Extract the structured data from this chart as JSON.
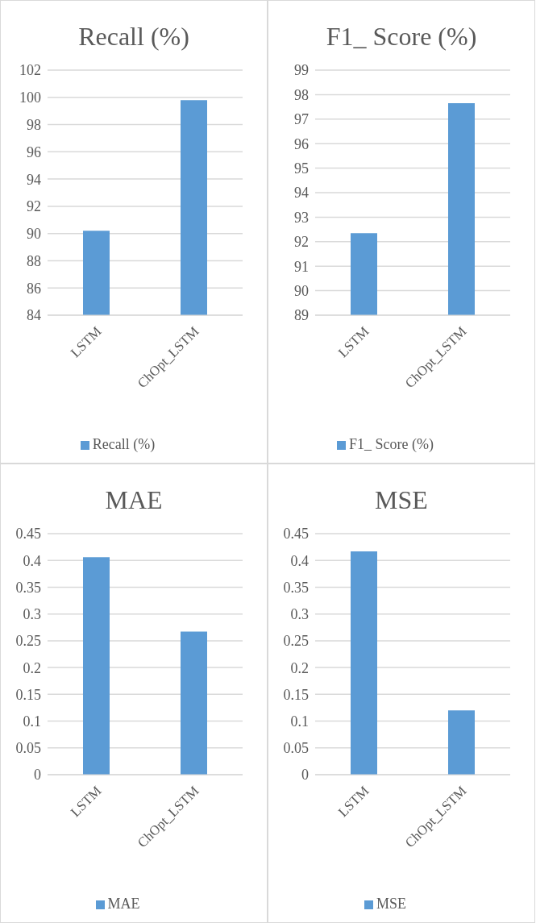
{
  "chart_data": [
    {
      "type": "bar",
      "title": "Recall (%)",
      "categories": [
        "LSTM",
        "ChOpt_LSTM"
      ],
      "series": [
        {
          "name": "Recall (%)",
          "color": "#5b9bd5",
          "values": [
            90.2,
            99.8
          ]
        }
      ],
      "ylim": [
        84,
        102
      ],
      "yticks": [
        84,
        86,
        88,
        90,
        92,
        94,
        96,
        98,
        100,
        102
      ],
      "grid": "y",
      "legend": "bottom"
    },
    {
      "type": "bar",
      "title": "F1_ Score (%)",
      "categories": [
        "LSTM",
        "ChOpt_LSTM"
      ],
      "series": [
        {
          "name": "F1_ Score (%)",
          "color": "#5b9bd5",
          "values": [
            92.35,
            97.65
          ]
        }
      ],
      "ylim": [
        89,
        99
      ],
      "yticks": [
        89,
        90,
        91,
        92,
        93,
        94,
        95,
        96,
        97,
        98,
        99
      ],
      "grid": "y",
      "legend": "bottom"
    },
    {
      "type": "bar",
      "title": "MAE",
      "categories": [
        "LSTM",
        "ChOpt_LSTM"
      ],
      "series": [
        {
          "name": "MAE",
          "color": "#5b9bd5",
          "values": [
            0.406,
            0.267
          ]
        }
      ],
      "ylim": [
        0,
        0.45
      ],
      "yticks": [
        0,
        0.05,
        0.1,
        0.15,
        0.2,
        0.25,
        0.3,
        0.35,
        0.4,
        0.45
      ],
      "grid": "y",
      "legend": "bottom"
    },
    {
      "type": "bar",
      "title": "MSE",
      "categories": [
        "LSTM",
        "ChOpt_LSTM"
      ],
      "series": [
        {
          "name": "MSE",
          "color": "#5b9bd5",
          "values": [
            0.417,
            0.12
          ]
        }
      ],
      "ylim": [
        0,
        0.45
      ],
      "yticks": [
        0,
        0.05,
        0.1,
        0.15,
        0.2,
        0.25,
        0.3,
        0.35,
        0.4,
        0.45
      ],
      "grid": "y",
      "legend": "bottom"
    }
  ]
}
